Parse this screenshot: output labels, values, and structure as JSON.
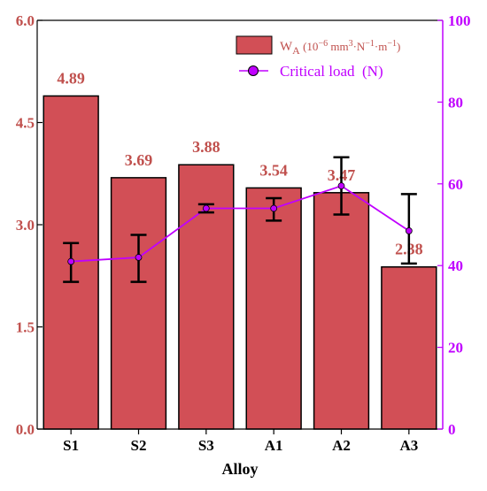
{
  "chart_data": {
    "type": "bar",
    "categories": [
      "S1",
      "S2",
      "S3",
      "A1",
      "A2",
      "A3"
    ],
    "xlabel": "Alloy",
    "left_axis": {
      "ylim": [
        0,
        6.0
      ],
      "ticks": [
        "0.0",
        "1.5",
        "3.0",
        "4.5",
        "6.0"
      ]
    },
    "right_axis": {
      "ylim": [
        0,
        100
      ],
      "ticks": [
        "0",
        "20",
        "40",
        "60",
        "80",
        "100"
      ]
    },
    "series": [
      {
        "name": "W_A (10^-6 mm^3·N^-1·m^-1)",
        "legend_main": "W",
        "legend_sub": "A",
        "legend_unit_parts": [
          "(10",
          "−6",
          " mm",
          "3",
          "·N",
          "−1",
          "·m",
          "−1",
          ")"
        ],
        "type": "bar",
        "axis": "left",
        "values": [
          4.89,
          3.69,
          3.88,
          3.54,
          3.47,
          2.38
        ],
        "value_labels": [
          "4.89",
          "3.69",
          "3.88",
          "3.54",
          "3.47",
          "2.38"
        ],
        "color": "#d24f56"
      },
      {
        "name": "Critical load  (N)",
        "type": "line",
        "axis": "right",
        "values": [
          41,
          42,
          54,
          54,
          59.5,
          48.5
        ],
        "error_low": [
          36,
          36,
          53,
          51,
          52.5,
          40.5
        ],
        "error_high": [
          45.5,
          47.5,
          55,
          56.5,
          66.5,
          57.5
        ],
        "color": "#c000ff"
      }
    ],
    "legend_position": "top-right",
    "colors": {
      "bar": "#d24f56",
      "bar_edge": "#000000",
      "line": "#c000ff",
      "left_axis": "#c0504d",
      "right_axis": "#c000ff"
    }
  }
}
